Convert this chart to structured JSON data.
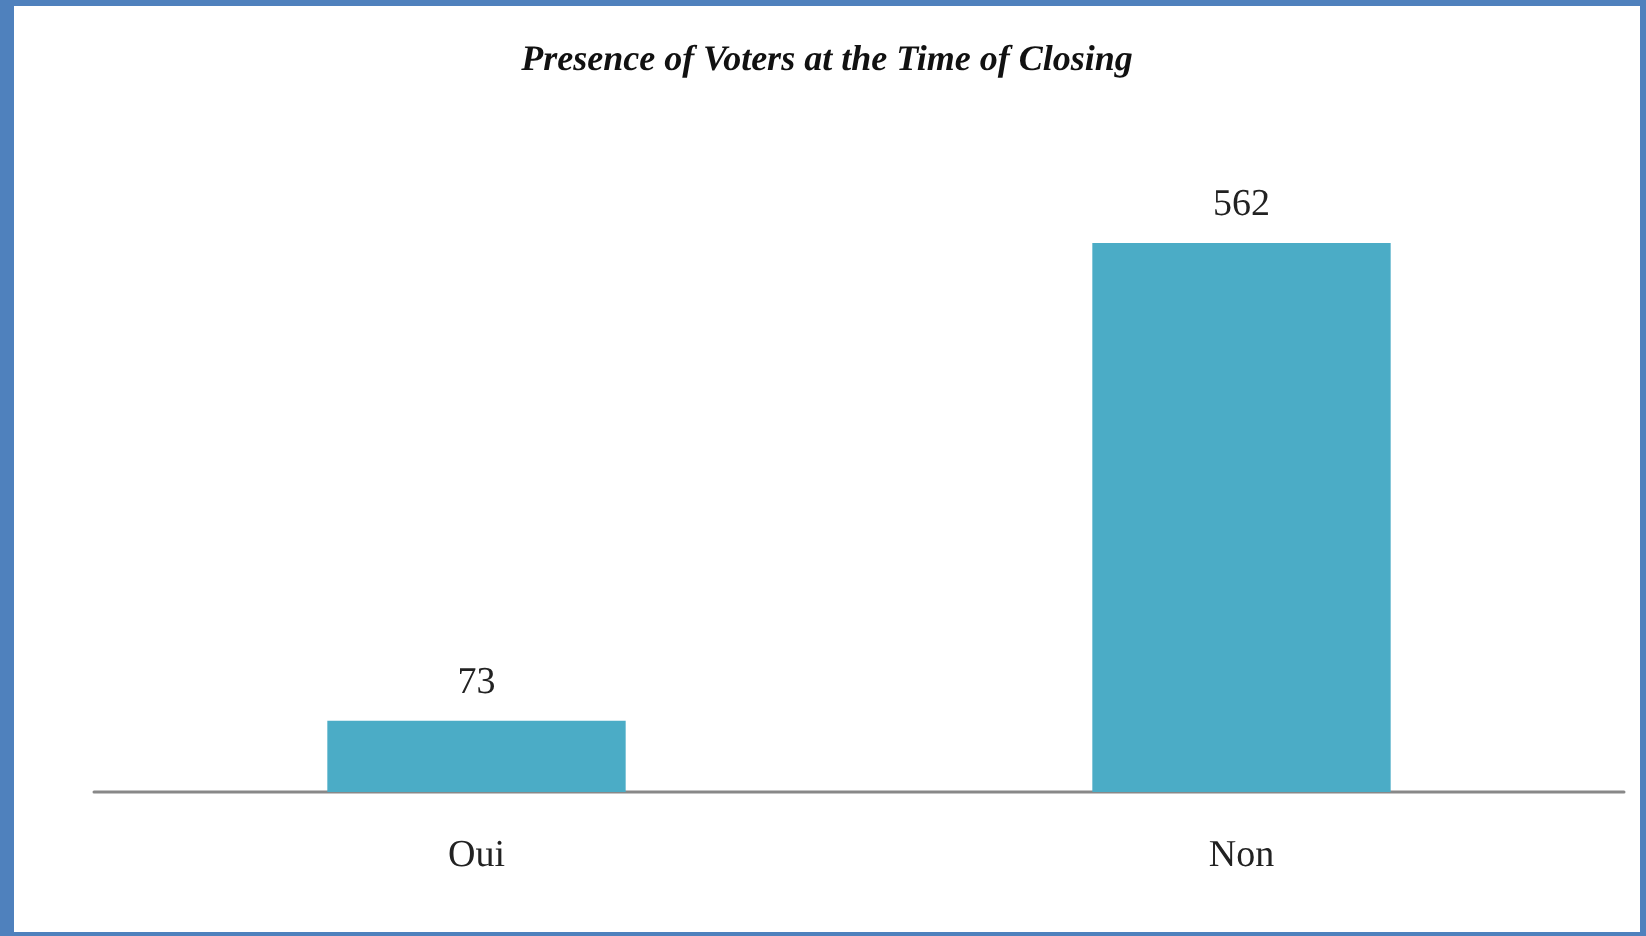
{
  "chart_data": {
    "type": "bar",
    "title": "Presence of Voters at the Time of Closing",
    "categories": [
      "Oui",
      "Non"
    ],
    "values": [
      73,
      562
    ],
    "color": "#4bacc6",
    "data_labels": true
  }
}
